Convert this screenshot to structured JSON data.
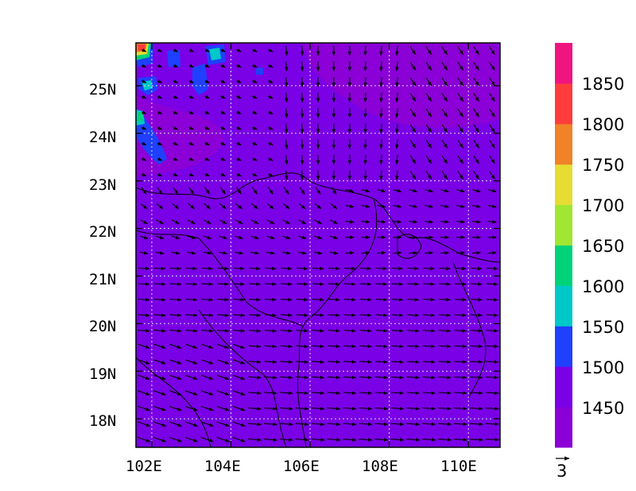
{
  "map": {
    "lon_labels": [
      "102E",
      "104E",
      "106E",
      "108E",
      "110E"
    ],
    "lat_labels": [
      "25N",
      "24N",
      "23N",
      "22N",
      "21N",
      "20N",
      "19N",
      "18N"
    ],
    "lon_ticks": [
      102,
      104,
      106,
      108,
      110
    ],
    "lat_ticks": [
      25,
      24,
      23,
      22,
      21,
      20,
      19,
      18
    ],
    "lon_range": [
      101.6,
      110.8
    ],
    "lat_range": [
      17.4,
      25.9
    ],
    "background_color": "#7a00e6",
    "gridlines": "dotted white"
  },
  "colorbar": {
    "labels": [
      "1850",
      "1800",
      "1750",
      "1700",
      "1650",
      "1600",
      "1550",
      "1500",
      "1450"
    ],
    "colors": [
      "#8a00d6",
      "#7a00e6",
      "#1f40ff",
      "#00c8c8",
      "#00d27a",
      "#a0e632",
      "#e6dc32",
      "#f08228",
      "#ff3c3c",
      "#f0147f"
    ]
  },
  "vector_legend": {
    "reference_value": "3"
  }
}
